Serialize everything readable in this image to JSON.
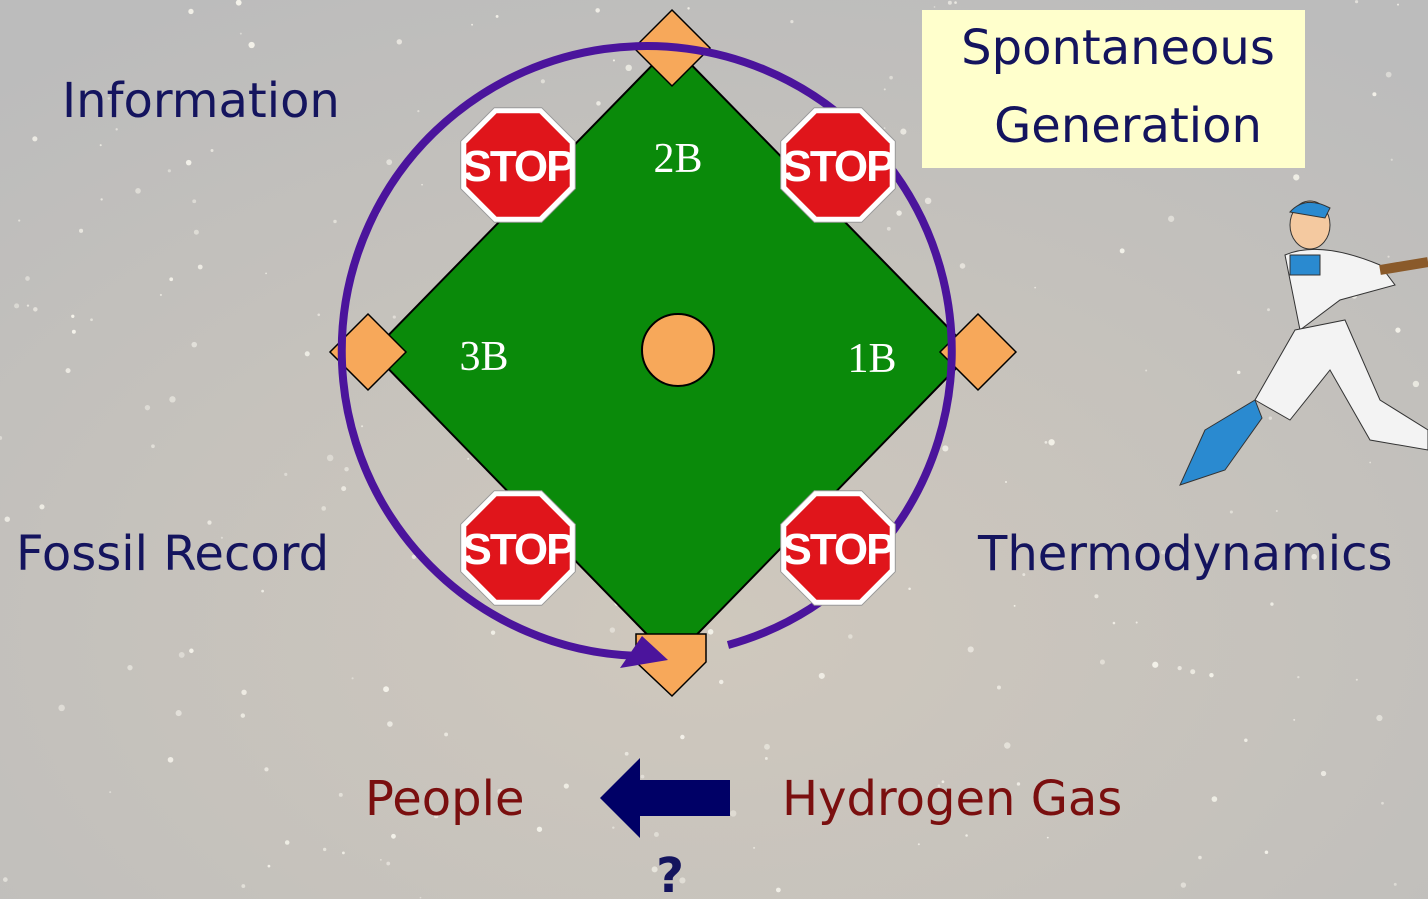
{
  "box": {
    "lines": [
      "Spontaneous",
      "Generation"
    ]
  },
  "corner_labels": {
    "top_left": "Information",
    "bottom_left": "Fossil Record",
    "bottom_right": "Thermodynamics"
  },
  "bases": {
    "second": "2B",
    "third": "3B",
    "first": "1B"
  },
  "stop_signs": [
    "STOP",
    "STOP",
    "STOP",
    "STOP"
  ],
  "bottom": {
    "left": "People",
    "right": "Hydrogen Gas",
    "question": "?"
  }
}
